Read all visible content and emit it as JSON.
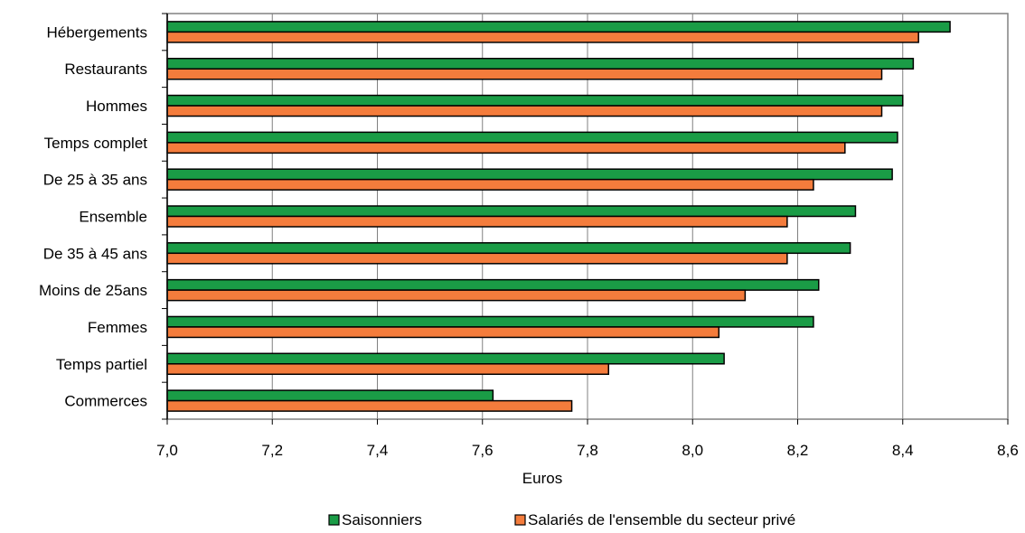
{
  "chart_data": {
    "type": "bar",
    "orientation": "horizontal",
    "categories": [
      "Hébergements",
      "Restaurants",
      "Hommes",
      "Temps complet",
      "De 25 à 35 ans",
      "Ensemble",
      "De 35 à 45 ans",
      "Moins de 25ans",
      "Femmes",
      "Temps partiel",
      "Commerces"
    ],
    "series": [
      {
        "name": "Saisonniers",
        "color": "#1a9c46",
        "values": [
          8.49,
          8.42,
          8.4,
          8.39,
          8.38,
          8.31,
          8.3,
          8.24,
          8.23,
          8.06,
          7.62
        ]
      },
      {
        "name": "Salariés de l'ensemble du secteur privé",
        "color": "#f47c3c",
        "values": [
          8.43,
          8.36,
          8.36,
          8.29,
          8.23,
          8.18,
          8.18,
          8.1,
          8.05,
          7.84,
          7.77
        ]
      }
    ],
    "xlabel": "Euros",
    "xlim": [
      7.0,
      8.6
    ],
    "xticks": [
      "7,0",
      "7,2",
      "7,4",
      "7,6",
      "7,8",
      "8,0",
      "8,2",
      "8,4",
      "8,6"
    ],
    "grid": "vertical",
    "legend": "bottom"
  }
}
